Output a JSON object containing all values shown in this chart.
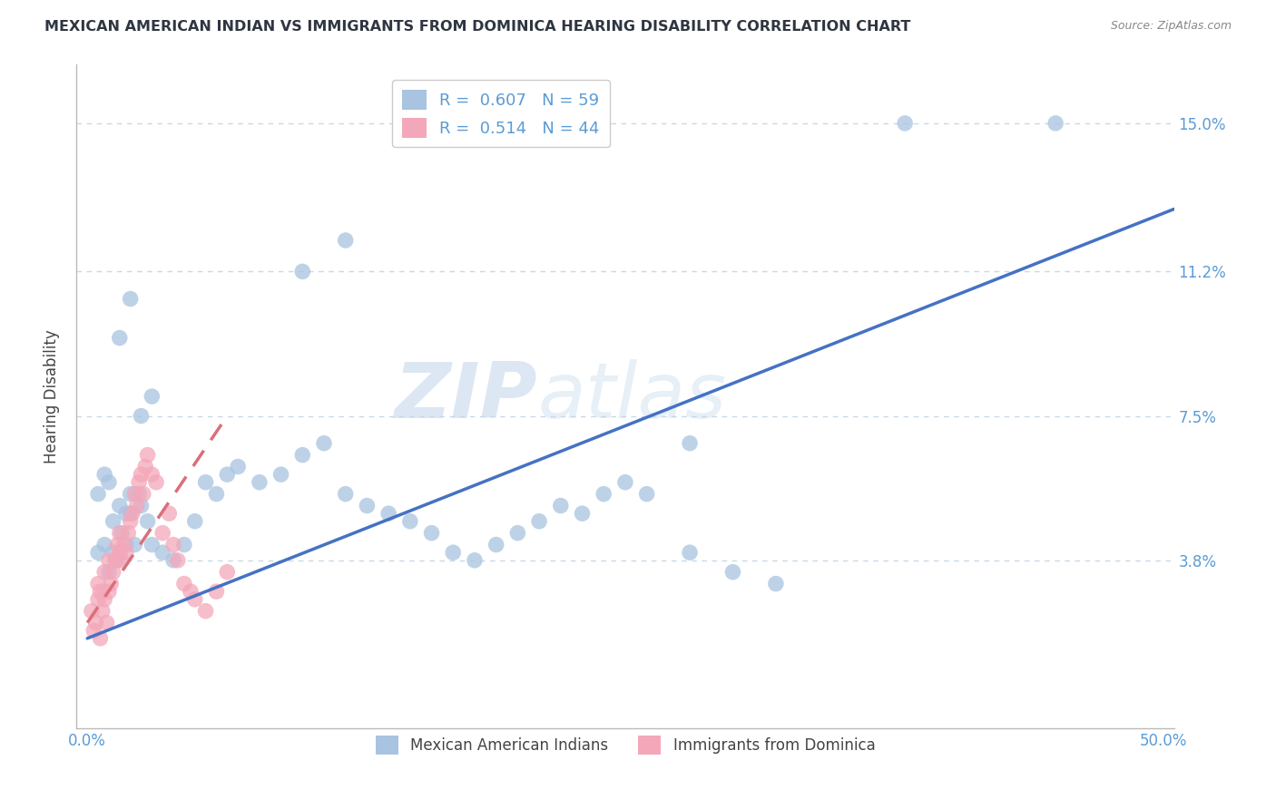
{
  "title": "MEXICAN AMERICAN INDIAN VS IMMIGRANTS FROM DOMINICA HEARING DISABILITY CORRELATION CHART",
  "source": "Source: ZipAtlas.com",
  "xlabel": "",
  "ylabel": "Hearing Disability",
  "xlim": [
    -0.005,
    0.505
  ],
  "ylim": [
    -0.005,
    0.165
  ],
  "yticks": [
    0.038,
    0.075,
    0.112,
    0.15
  ],
  "ytick_labels": [
    "3.8%",
    "7.5%",
    "11.2%",
    "15.0%"
  ],
  "xticks": [
    0.0,
    0.5
  ],
  "xtick_labels": [
    "0.0%",
    "50.0%"
  ],
  "scatter_blue_color": "#a8c4e0",
  "scatter_pink_color": "#f4a7b9",
  "line_blue_color": "#4472c4",
  "line_pink_color": "#d9707a",
  "watermark_zip": "ZIP",
  "watermark_atlas": "atlas",
  "background_color": "#ffffff",
  "grid_color": "#c8d8e8",
  "title_color": "#2f3640",
  "axis_label_color": "#5b9bd5",
  "blue_points_x": [
    0.005,
    0.008,
    0.01,
    0.012,
    0.014,
    0.016,
    0.018,
    0.02,
    0.022,
    0.024,
    0.005,
    0.008,
    0.01,
    0.012,
    0.015,
    0.018,
    0.02,
    0.025,
    0.028,
    0.03,
    0.035,
    0.04,
    0.045,
    0.05,
    0.055,
    0.06,
    0.065,
    0.07,
    0.08,
    0.09,
    0.1,
    0.11,
    0.12,
    0.13,
    0.14,
    0.15,
    0.16,
    0.17,
    0.18,
    0.19,
    0.2,
    0.21,
    0.22,
    0.23,
    0.24,
    0.25,
    0.26,
    0.28,
    0.3,
    0.32,
    0.015,
    0.02,
    0.025,
    0.03,
    0.38,
    0.45,
    0.12,
    0.28,
    0.1
  ],
  "blue_points_y": [
    0.04,
    0.042,
    0.035,
    0.04,
    0.038,
    0.045,
    0.042,
    0.05,
    0.042,
    0.055,
    0.055,
    0.06,
    0.058,
    0.048,
    0.052,
    0.05,
    0.055,
    0.052,
    0.048,
    0.042,
    0.04,
    0.038,
    0.042,
    0.048,
    0.058,
    0.055,
    0.06,
    0.062,
    0.058,
    0.06,
    0.065,
    0.068,
    0.055,
    0.052,
    0.05,
    0.048,
    0.045,
    0.04,
    0.038,
    0.042,
    0.045,
    0.048,
    0.052,
    0.05,
    0.055,
    0.058,
    0.055,
    0.04,
    0.035,
    0.032,
    0.095,
    0.105,
    0.075,
    0.08,
    0.15,
    0.15,
    0.12,
    0.068,
    0.112
  ],
  "pink_points_x": [
    0.002,
    0.003,
    0.004,
    0.005,
    0.005,
    0.006,
    0.006,
    0.007,
    0.008,
    0.008,
    0.009,
    0.01,
    0.01,
    0.011,
    0.012,
    0.013,
    0.014,
    0.015,
    0.015,
    0.016,
    0.017,
    0.018,
    0.019,
    0.02,
    0.021,
    0.022,
    0.023,
    0.024,
    0.025,
    0.026,
    0.027,
    0.028,
    0.03,
    0.032,
    0.035,
    0.038,
    0.04,
    0.042,
    0.045,
    0.048,
    0.05,
    0.055,
    0.06,
    0.065
  ],
  "pink_points_y": [
    0.025,
    0.02,
    0.022,
    0.028,
    0.032,
    0.018,
    0.03,
    0.025,
    0.028,
    0.035,
    0.022,
    0.03,
    0.038,
    0.032,
    0.035,
    0.038,
    0.042,
    0.04,
    0.045,
    0.038,
    0.042,
    0.04,
    0.045,
    0.048,
    0.05,
    0.055,
    0.052,
    0.058,
    0.06,
    0.055,
    0.062,
    0.065,
    0.06,
    0.058,
    0.045,
    0.05,
    0.042,
    0.038,
    0.032,
    0.03,
    0.028,
    0.025,
    0.03,
    0.035
  ],
  "blue_line_x": [
    0.0,
    0.505
  ],
  "blue_line_y": [
    0.018,
    0.128
  ],
  "pink_line_x": [
    0.0,
    0.065
  ],
  "pink_line_y": [
    0.022,
    0.075
  ],
  "legend_entries": [
    {
      "label": "R =  0.607   N = 59",
      "color": "#a8c4e0"
    },
    {
      "label": "R =  0.514   N = 44",
      "color": "#f4a7b9"
    }
  ],
  "bottom_legend": [
    {
      "label": "Mexican American Indians",
      "color": "#a8c4e0"
    },
    {
      "label": "Immigrants from Dominica",
      "color": "#f4a7b9"
    }
  ]
}
